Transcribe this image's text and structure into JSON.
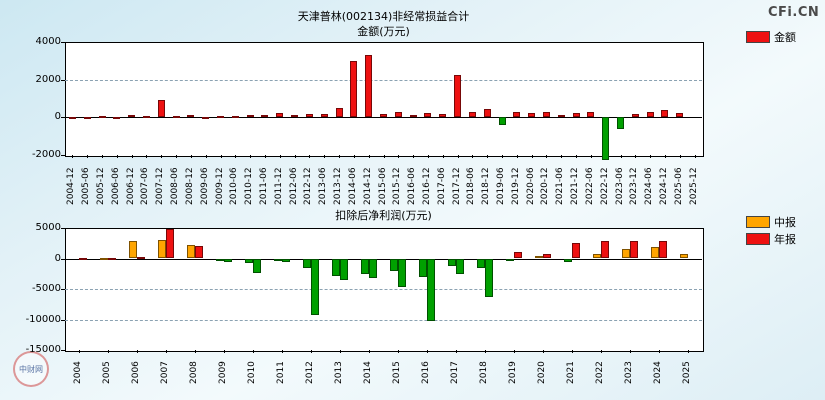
{
  "brand": "CFi.CN",
  "watermark": "中财网",
  "top_chart": {
    "title": "天津普林(002134)非经常损益合计",
    "subtitle": "金额(万元)",
    "legend": [
      {
        "label": "金额",
        "color": "#ee1111"
      }
    ]
  },
  "bottom_chart": {
    "title": "扣除后净利润(万元)",
    "legend": [
      {
        "label": "中报",
        "color": "#ffa500"
      },
      {
        "label": "年报",
        "color": "#ee1111"
      }
    ]
  },
  "chart_data": [
    {
      "type": "bar",
      "title": "天津普林(002134)非经常损益合计",
      "ylabel": "金额(万元)",
      "ylim": [
        -2000,
        4000
      ],
      "yticks": [
        -2000,
        0,
        2000,
        4000
      ],
      "grid": true,
      "legend_position": "top-right",
      "positive_color": "#ee1111",
      "negative_color": "#00a000",
      "categories": [
        "2004-12",
        "2005-06",
        "2005-12",
        "2006-06",
        "2006-12",
        "2007-06",
        "2007-12",
        "2008-06",
        "2008-12",
        "2009-06",
        "2009-12",
        "2010-06",
        "2010-12",
        "2011-06",
        "2011-12",
        "2012-06",
        "2012-12",
        "2013-06",
        "2013-12",
        "2014-06",
        "2014-12",
        "2015-06",
        "2015-12",
        "2016-06",
        "2016-12",
        "2017-06",
        "2017-12",
        "2018-06",
        "2018-12",
        "2019-06",
        "2019-12",
        "2020-06",
        "2020-12",
        "2021-06",
        "2021-12",
        "2022-06",
        "2022-12",
        "2023-06",
        "2023-12",
        "2024-06",
        "2024-12",
        "2025-06",
        "2025-12"
      ],
      "series": [
        {
          "name": "金额",
          "values": [
            15,
            8,
            60,
            25,
            120,
            60,
            900,
            50,
            110,
            40,
            90,
            60,
            130,
            110,
            230,
            110,
            190,
            160,
            480,
            3000,
            3300,
            160,
            290,
            130,
            230,
            190,
            2250,
            290,
            430,
            -400,
            290,
            230,
            290,
            130,
            210,
            260,
            -2250,
            -620,
            160,
            260,
            410,
            210,
            null
          ]
        }
      ]
    },
    {
      "type": "bar",
      "title": "扣除后净利润(万元)",
      "ylim": [
        -15000,
        5000
      ],
      "yticks": [
        -15000,
        -10000,
        -5000,
        0,
        5000
      ],
      "grid": true,
      "legend_position": "top-right",
      "positive_color": "#ee1111",
      "negative_color": "#00a000",
      "categories": [
        "2004",
        "2005",
        "2006",
        "2007",
        "2008",
        "2009",
        "2010",
        "2011",
        "2012",
        "2013",
        "2014",
        "2015",
        "2016",
        "2017",
        "2018",
        "2019",
        "2020",
        "2021",
        "2022",
        "2023",
        "2024",
        "2025"
      ],
      "series": [
        {
          "name": "中报",
          "color": "#ffa500",
          "values": [
            null,
            80,
            2800,
            3000,
            2200,
            -300,
            -700,
            -350,
            -1500,
            -2800,
            -2500,
            -2000,
            -3000,
            -1200,
            -1500,
            -350,
            400,
            -500,
            800,
            1600,
            1900,
            800
          ]
        },
        {
          "name": "年报",
          "color": "#ee1111",
          "values": [
            100,
            150,
            250,
            4900,
            2000,
            -550,
            -2300,
            -650,
            -9200,
            -3600,
            -3200,
            -4600,
            -10300,
            -2500,
            -6300,
            1100,
            800,
            2600,
            2800,
            2900,
            2900,
            null
          ]
        }
      ]
    }
  ]
}
